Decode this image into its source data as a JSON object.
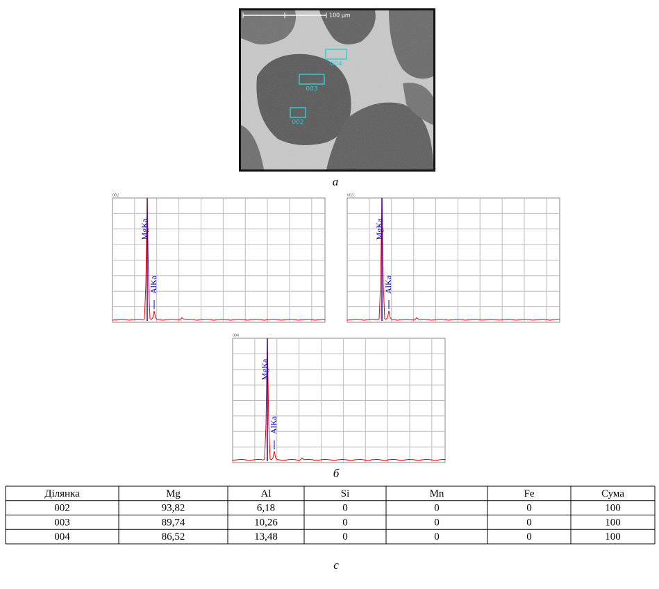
{
  "figure": {
    "sem": {
      "scale_label": "100 μm",
      "regions": [
        "004",
        "003",
        "002"
      ],
      "caption": "а"
    },
    "spectra": [
      {
        "label": "002",
        "peaks": [
          "MgKa",
          "AlKa"
        ]
      },
      {
        "label": "003",
        "peaks": [
          "MgKa",
          "AlKa"
        ]
      },
      {
        "label": "004",
        "peaks": [
          "MgKa",
          "AlKa"
        ]
      }
    ],
    "spectra_caption": "б",
    "table": {
      "header": [
        "Ділянка",
        "Mg",
        "Al",
        "Si",
        "Mn",
        "Fe",
        "Сума"
      ],
      "rows": [
        [
          "002",
          "93,82",
          "6,18",
          "0",
          "0",
          "0",
          "100"
        ],
        [
          "003",
          "89,74",
          "10,26",
          "0",
          "0",
          "0",
          "100"
        ],
        [
          "004",
          "86,52",
          "13,48",
          "0",
          "0",
          "0",
          "100"
        ]
      ]
    },
    "table_caption": "с"
  }
}
